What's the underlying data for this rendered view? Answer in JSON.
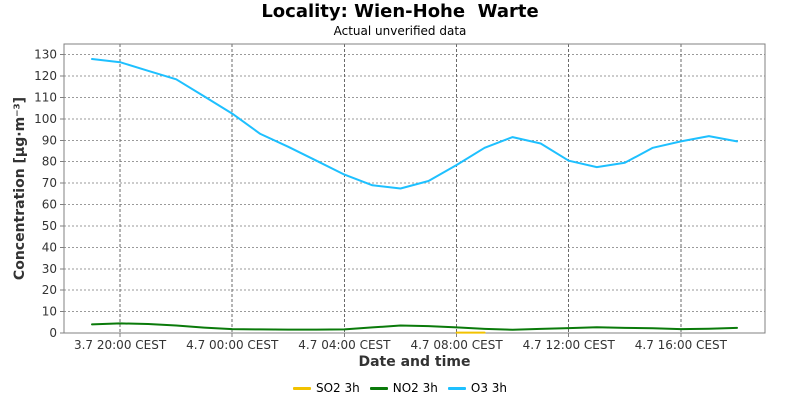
{
  "chart_data": {
    "type": "line",
    "title": "Locality: Wien-Hohe  Warte",
    "subtitle": "Actual unverified data",
    "xlabel": "Date and time",
    "ylabel": "Concentration [µg·m⁻³]",
    "ylim": [
      0,
      135
    ],
    "yticks": [
      0,
      10,
      20,
      30,
      40,
      50,
      60,
      70,
      80,
      90,
      100,
      110,
      120,
      130
    ],
    "x_ticks": [
      {
        "hour": 1,
        "label": "3.7 20:00 CEST"
      },
      {
        "hour": 5,
        "label": "4.7 00:00 CEST"
      },
      {
        "hour": 9,
        "label": "4.7 04:00 CEST"
      },
      {
        "hour": 13,
        "label": "4.7 08:00 CEST"
      },
      {
        "hour": 17,
        "label": "4.7 12:00 CEST"
      },
      {
        "hour": 21,
        "label": "4.7 16:00 CEST"
      }
    ],
    "xlim": [
      -1,
      24
    ],
    "grid": true,
    "legend_position": "bottom",
    "series": [
      {
        "name": "SO2 3h",
        "color": "#f2c200",
        "points": [
          [
            13,
            0.2
          ],
          [
            14,
            0.2
          ]
        ]
      },
      {
        "name": "NO2 3h",
        "color": "#0a7a0a",
        "points": [
          [
            0,
            4
          ],
          [
            1,
            4.5
          ],
          [
            2,
            4.2
          ],
          [
            3,
            3.5
          ],
          [
            4,
            2.5
          ],
          [
            5,
            1.8
          ],
          [
            6,
            1.7
          ],
          [
            7,
            1.6
          ],
          [
            8,
            1.6
          ],
          [
            9,
            1.7
          ],
          [
            10,
            2.6
          ],
          [
            11,
            3.5
          ],
          [
            12,
            3.2
          ],
          [
            13,
            2.6
          ],
          [
            14,
            1.9
          ],
          [
            15,
            1.5
          ],
          [
            16,
            1.9
          ],
          [
            17,
            2.3
          ],
          [
            18,
            2.7
          ],
          [
            19,
            2.4
          ],
          [
            20,
            2.2
          ],
          [
            21,
            1.8
          ],
          [
            22,
            2.0
          ],
          [
            23,
            2.4
          ]
        ]
      },
      {
        "name": "O3 3h",
        "color": "#1ec0ff",
        "points": [
          [
            0,
            128
          ],
          [
            1,
            126.5
          ],
          [
            2,
            122.5
          ],
          [
            3,
            118.5
          ],
          [
            4,
            110.5
          ],
          [
            5,
            102.5
          ],
          [
            6,
            93
          ],
          [
            7,
            87
          ],
          [
            8,
            80.5
          ],
          [
            9,
            74
          ],
          [
            10,
            69
          ],
          [
            11,
            67.5
          ],
          [
            12,
            71
          ],
          [
            13,
            78.5
          ],
          [
            14,
            86.5
          ],
          [
            15,
            91.5
          ],
          [
            16,
            88.5
          ],
          [
            17,
            80.5
          ],
          [
            18,
            77.5
          ],
          [
            19,
            79.5
          ],
          [
            20,
            86.5
          ],
          [
            21,
            89.5
          ],
          [
            22,
            92
          ],
          [
            23,
            89.5
          ]
        ]
      }
    ]
  },
  "colors": {
    "grid": "#9a9a9a",
    "axis": "#808080",
    "text": "#000000"
  }
}
